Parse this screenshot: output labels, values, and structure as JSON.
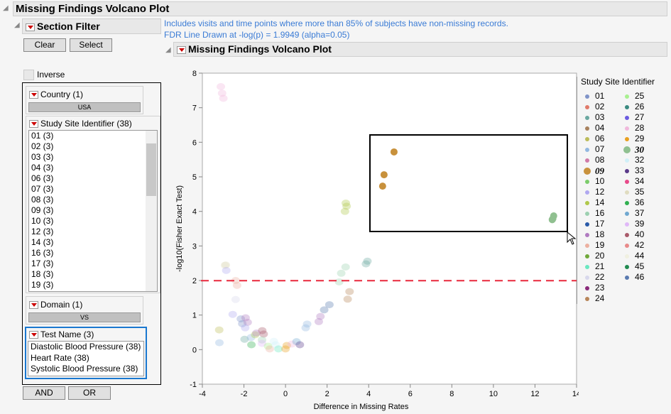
{
  "window": {
    "title": "Missing Findings Volcano Plot"
  },
  "filter": {
    "title": "Section Filter",
    "clear": "Clear",
    "select": "Select",
    "inverse": "Inverse",
    "country": {
      "title": "Country (1)",
      "value": "USA"
    },
    "site": {
      "title": "Study Site Identifier (38)",
      "items": [
        "01 (3)",
        "02 (3)",
        "03 (3)",
        "04 (3)",
        "06 (3)",
        "07 (3)",
        "08 (3)",
        "09 (3)",
        "10 (3)",
        "12 (3)",
        "14 (3)",
        "16 (3)",
        "17 (3)",
        "18 (3)",
        "19 (3)"
      ]
    },
    "domain": {
      "title": "Domain (1)",
      "value": "VS"
    },
    "test": {
      "title": "Test Name (3)",
      "items": [
        "Diastolic Blood Pressure (38)",
        "Heart Rate (38)",
        "Systolic Blood Pressure (38)"
      ]
    },
    "and": "AND",
    "or": "OR"
  },
  "notes": [
    "Includes visits and time points where more than 85% of subjects have non-missing records.",
    "FDR Line Drawn at -log(p) = 1.9949 (alpha=0.05)"
  ],
  "plot_title": "Missing Findings Volcano Plot",
  "legend": {
    "title": "Study Site Identifier",
    "items": [
      {
        "id": "01",
        "color": "#7f93c8"
      },
      {
        "id": "02",
        "color": "#e07a6a"
      },
      {
        "id": "03",
        "color": "#6aa8a0"
      },
      {
        "id": "04",
        "color": "#a8825e"
      },
      {
        "id": "06",
        "color": "#bcbc5a"
      },
      {
        "id": "07",
        "color": "#92b8e0"
      },
      {
        "id": "08",
        "color": "#d07aa8"
      },
      {
        "id": "09",
        "color": "#c8913c",
        "bold": true
      },
      {
        "id": "10",
        "color": "#7ccc6a"
      },
      {
        "id": "12",
        "color": "#b0a8f0"
      },
      {
        "id": "14",
        "color": "#b0c84a"
      },
      {
        "id": "16",
        "color": "#9cd0b0"
      },
      {
        "id": "17",
        "color": "#2a5aa8"
      },
      {
        "id": "18",
        "color": "#b07ac0"
      },
      {
        "id": "19",
        "color": "#ecb0a0"
      },
      {
        "id": "20",
        "color": "#70a83a"
      },
      {
        "id": "21",
        "color": "#6ae8c0"
      },
      {
        "id": "22",
        "color": "#d8d8ec"
      },
      {
        "id": "23",
        "color": "#8a2a7a"
      },
      {
        "id": "24",
        "color": "#b8865a"
      },
      {
        "id": "25",
        "color": "#a8f090"
      },
      {
        "id": "26",
        "color": "#3a8a80"
      },
      {
        "id": "27",
        "color": "#6a5ae0"
      },
      {
        "id": "28",
        "color": "#f0b8dc"
      },
      {
        "id": "29",
        "color": "#e8a020"
      },
      {
        "id": "30",
        "color": "#90c090",
        "bold": true
      },
      {
        "id": "32",
        "color": "#d0f0f8"
      },
      {
        "id": "33",
        "color": "#5a3a8a"
      },
      {
        "id": "34",
        "color": "#e84a8a"
      },
      {
        "id": "35",
        "color": "#e0dcc0"
      },
      {
        "id": "36",
        "color": "#30b050"
      },
      {
        "id": "37",
        "color": "#70a8d0"
      },
      {
        "id": "39",
        "color": "#e0b8f8"
      },
      {
        "id": "40",
        "color": "#a85a6a"
      },
      {
        "id": "42",
        "color": "#e88a8a"
      },
      {
        "id": "44",
        "color": "#f0f0e0"
      },
      {
        "id": "45",
        "color": "#208a50"
      },
      {
        "id": "46",
        "color": "#5a7ab0"
      }
    ]
  },
  "chart_data": {
    "type": "scatter",
    "xlabel": "Difference in Missing Rates",
    "ylabel": "-log10(Fisher Exact Test)",
    "xlim": [
      -4,
      14
    ],
    "ylim": [
      -1,
      8
    ],
    "xticks": [
      "-4",
      "-2",
      "0",
      "2",
      "4",
      "6",
      "8",
      "10",
      "12",
      "14"
    ],
    "yticks": [
      "-1",
      "0",
      "1",
      "2",
      "3",
      "4",
      "5",
      "6",
      "7",
      "8"
    ],
    "reference_line": {
      "y": 1.9949,
      "color": "#e8283c",
      "style": "dashed"
    },
    "selected_sites": [
      "09",
      "30"
    ],
    "points": [
      {
        "site": "28",
        "x": -3.11,
        "y": 7.61
      },
      {
        "site": "28",
        "x": -3.05,
        "y": 7.42
      },
      {
        "site": "28",
        "x": -2.99,
        "y": 7.27
      },
      {
        "site": "35",
        "x": -2.91,
        "y": 2.44
      },
      {
        "site": "35",
        "x": -2.87,
        "y": 2.45
      },
      {
        "site": "12",
        "x": -2.85,
        "y": 2.29
      },
      {
        "site": "19",
        "x": -2.4,
        "y": 2.0
      },
      {
        "site": "19",
        "x": -2.33,
        "y": 1.86
      },
      {
        "site": "22",
        "x": -2.4,
        "y": 1.45
      },
      {
        "site": "12",
        "x": -2.54,
        "y": 1.02
      },
      {
        "site": "06",
        "x": -3.19,
        "y": 0.57
      },
      {
        "site": "07",
        "x": -3.18,
        "y": 0.2
      },
      {
        "site": "01",
        "x": -2.15,
        "y": 0.89
      },
      {
        "site": "01",
        "x": -2.08,
        "y": 0.75
      },
      {
        "site": "18",
        "x": -1.92,
        "y": 0.92
      },
      {
        "site": "18",
        "x": -1.82,
        "y": 0.79
      },
      {
        "site": "12",
        "x": -1.94,
        "y": 0.63
      },
      {
        "site": "03",
        "x": -1.97,
        "y": 0.3
      },
      {
        "site": "36",
        "x": -1.64,
        "y": 0.14
      },
      {
        "site": "07",
        "x": -1.66,
        "y": 0.35
      },
      {
        "site": "14",
        "x": -1.46,
        "y": 0.43
      },
      {
        "site": "18",
        "x": -1.4,
        "y": 0.48
      },
      {
        "site": "40",
        "x": -1.12,
        "y": 0.55
      },
      {
        "site": "40",
        "x": -1.05,
        "y": 0.45
      },
      {
        "site": "16",
        "x": -1.13,
        "y": 0.28
      },
      {
        "site": "39",
        "x": -1.13,
        "y": 0.18
      },
      {
        "site": "25",
        "x": -0.84,
        "y": 0.1
      },
      {
        "site": "19",
        "x": -0.76,
        "y": 0.02
      },
      {
        "site": "32",
        "x": -0.56,
        "y": 0.24
      },
      {
        "site": "32",
        "x": -0.47,
        "y": 0.14
      },
      {
        "site": "21",
        "x": -0.34,
        "y": 0.02
      },
      {
        "site": "29",
        "x": 0.0,
        "y": 0.02
      },
      {
        "site": "29",
        "x": 0.06,
        "y": 0.12
      },
      {
        "site": "28",
        "x": 0.3,
        "y": 0.16
      },
      {
        "site": "37",
        "x": 0.53,
        "y": 0.23
      },
      {
        "site": "33",
        "x": 0.69,
        "y": 0.14
      },
      {
        "site": "07",
        "x": 0.97,
        "y": 0.63
      },
      {
        "site": "07",
        "x": 1.04,
        "y": 0.74
      },
      {
        "site": "18",
        "x": 1.6,
        "y": 0.81
      },
      {
        "site": "18",
        "x": 1.68,
        "y": 0.96
      },
      {
        "site": "46",
        "x": 1.86,
        "y": 1.15
      },
      {
        "site": "46",
        "x": 2.11,
        "y": 1.3
      },
      {
        "site": "16",
        "x": 2.58,
        "y": 1.96
      },
      {
        "site": "16",
        "x": 2.68,
        "y": 2.21
      },
      {
        "site": "16",
        "x": 2.89,
        "y": 2.39
      },
      {
        "site": "24",
        "x": 2.99,
        "y": 1.46
      },
      {
        "site": "24",
        "x": 3.08,
        "y": 1.68
      },
      {
        "site": "14",
        "x": 2.86,
        "y": 4.0
      },
      {
        "site": "14",
        "x": 2.9,
        "y": 4.24
      },
      {
        "site": "14",
        "x": 2.94,
        "y": 4.15
      },
      {
        "site": "03",
        "x": 3.87,
        "y": 2.48
      },
      {
        "site": "03",
        "x": 3.94,
        "y": 2.56
      },
      {
        "site": "09",
        "x": 5.22,
        "y": 5.72
      },
      {
        "site": "09",
        "x": 4.74,
        "y": 5.06
      },
      {
        "site": "09",
        "x": 4.67,
        "y": 4.73
      },
      {
        "site": "30",
        "x": 12.86,
        "y": 3.79
      },
      {
        "site": "30",
        "x": 12.9,
        "y": 3.87
      },
      {
        "site": "30",
        "x": 12.83,
        "y": 3.76
      }
    ]
  }
}
